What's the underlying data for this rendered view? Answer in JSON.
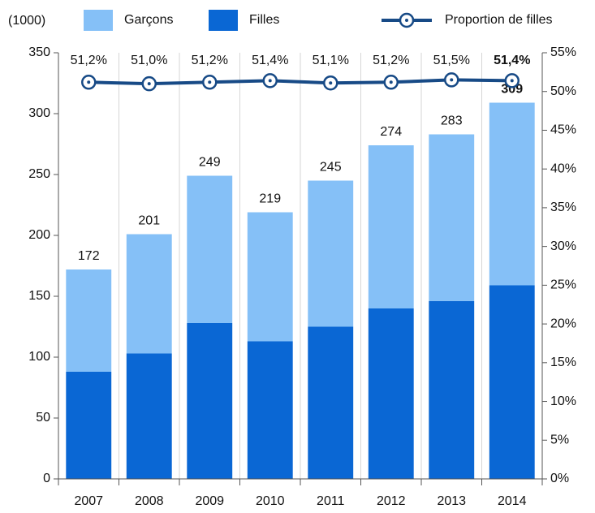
{
  "chart_data": {
    "type": "bar",
    "stacked": true,
    "y_unit": "(1000)",
    "categories": [
      "2007",
      "2008",
      "2009",
      "2010",
      "2011",
      "2012",
      "2013",
      "2014"
    ],
    "series": [
      {
        "name": "Filles",
        "color": "#0a67d4",
        "values": [
          88,
          103,
          128,
          113,
          125,
          140,
          146,
          159
        ]
      },
      {
        "name": "Garçons",
        "color": "#85c0f7",
        "values": [
          84,
          98,
          121,
          106,
          120,
          134,
          137,
          150
        ]
      },
      {
        "name": "Proportion de filles",
        "color": "#174a86",
        "axis": "y2",
        "type": "line",
        "values": [
          51.2,
          51.0,
          51.2,
          51.4,
          51.1,
          51.2,
          51.5,
          51.4
        ],
        "value_labels": [
          "51,2%",
          "51,0%",
          "51,2%",
          "51,4%",
          "51,1%",
          "51,2%",
          "51,5%",
          "51,4%"
        ]
      }
    ],
    "totals": [
      172,
      201,
      249,
      219,
      245,
      274,
      283,
      309
    ],
    "ylim": [
      0,
      350
    ],
    "yticks": [
      0,
      50,
      100,
      150,
      200,
      250,
      300,
      350
    ],
    "y2lim": [
      0,
      55
    ],
    "y2ticks": [
      {
        "value": 0,
        "label": "0%"
      },
      {
        "value": 5,
        "label": "5%"
      },
      {
        "value": 10,
        "label": "10%"
      },
      {
        "value": 15,
        "label": "15%"
      },
      {
        "value": 20,
        "label": "20%"
      },
      {
        "value": 25,
        "label": "25%"
      },
      {
        "value": 30,
        "label": "30%"
      },
      {
        "value": 35,
        "label": "35%"
      },
      {
        "value": 40,
        "label": "40%"
      },
      {
        "value": 45,
        "label": "45%"
      },
      {
        "value": 50,
        "label": "50%"
      },
      {
        "value": 55,
        "label": "55%"
      }
    ],
    "grid": true,
    "legend": "top"
  }
}
